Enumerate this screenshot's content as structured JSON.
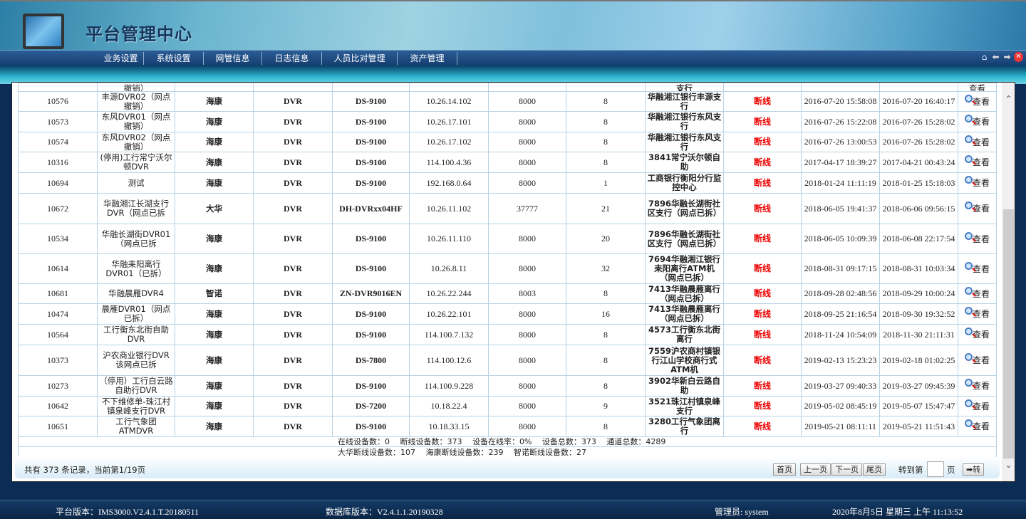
{
  "header": {
    "title": "平台管理中心"
  },
  "nav": {
    "items": [
      "业务设置",
      "系统设置",
      "网管信息",
      "日志信息",
      "人员比对管理",
      "资产管理"
    ],
    "icons": [
      "home-icon",
      "back-arrow-icon",
      "forward-arrow-icon",
      "close-icon"
    ]
  },
  "table": {
    "partial_row": {
      "name": "撤销）",
      "org": "支行",
      "action": "查看"
    },
    "rows": [
      [
        "10576",
        "丰源DVR02（网点撤销）",
        "海康",
        "DVR",
        "DS-9100",
        "10.26.14.102",
        "8000",
        "8",
        "华融湘江银行丰源支行",
        "断线",
        "2016-07-20 15:58:08",
        "2016-07-20 16:40:17",
        "查看"
      ],
      [
        "10573",
        "东风DVR01（网点撤销）",
        "海康",
        "DVR",
        "DS-9100",
        "10.26.17.101",
        "8000",
        "8",
        "华融湘江银行东风支行",
        "断线",
        "2016-07-26 15:22:08",
        "2016-07-26 15:28:02",
        "查看"
      ],
      [
        "10574",
        "东风DVR02（网点撤销）",
        "海康",
        "DVR",
        "DS-9100",
        "10.26.17.102",
        "8000",
        "8",
        "华融湘江银行东风支行",
        "断线",
        "2016-07-26 13:00:53",
        "2016-07-26 15:28:02",
        "查看"
      ],
      [
        "10316",
        "(停用)工行常宁沃尔顿DVR",
        "海康",
        "DVR",
        "DS-9100",
        "114.100.4.36",
        "8000",
        "8",
        "3841常宁沃尔顿自助",
        "断线",
        "2017-04-17 18:39:27",
        "2017-04-21 00:43:24",
        "查看"
      ],
      [
        "10694",
        "测试",
        "海康",
        "DVR",
        "DS-9100",
        "192.168.0.64",
        "8000",
        "1",
        "工商银行衡阳分行监控中心",
        "断线",
        "2018-01-24 11:11:19",
        "2018-01-25 15:18:03",
        "查看"
      ],
      [
        "10672",
        "华融湘江长湖支行DVR（网点已拆",
        "大华",
        "DVR",
        "DH-DVRxx04HF",
        "10.26.11.102",
        "37777",
        "21",
        "7896华融长湖街社区支行（网点已拆）",
        "断线",
        "2018-06-05 19:41:37",
        "2018-06-06 09:56:15",
        "查看"
      ],
      [
        "10534",
        "华融长湖街DVR01（网点已拆",
        "海康",
        "DVR",
        "DS-9100",
        "10.26.11.110",
        "8000",
        "20",
        "7896华融长湖街社区支行（网点已拆）",
        "断线",
        "2018-06-05 10:09:39",
        "2018-06-08 22:17:54",
        "查看"
      ],
      [
        "10614",
        "华融耒阳离行DVR01（已拆）",
        "海康",
        "DVR",
        "DS-9100",
        "10.26.8.11",
        "8000",
        "32",
        "7694华融湘江银行耒阳离行ATM机（网点已拆）",
        "断线",
        "2018-08-31 09:17:15",
        "2018-08-31 10:03:34",
        "查看"
      ],
      [
        "10681",
        "华融晨雁DVR4",
        "智诺",
        "DVR",
        "ZN-DVR9016EN",
        "10.26.22.244",
        "8003",
        "8",
        "7413华融晨雁离行（网点已拆）",
        "断线",
        "2018-09-28 02:48:56",
        "2018-09-29 10:00:24",
        "查看"
      ],
      [
        "10474",
        "晨雁DVR01（网点已拆）",
        "海康",
        "DVR",
        "DS-9100",
        "10.26.22.101",
        "8000",
        "16",
        "7413华融晨雁离行（网点已拆）",
        "断线",
        "2018-09-25 21:16:54",
        "2018-09-30 19:32:52",
        "查看"
      ],
      [
        "10564",
        "工行衡东北街自助DVR",
        "海康",
        "DVR",
        "DS-9100",
        "114.100.7.132",
        "8000",
        "8",
        "4573工行衡东北街离行",
        "断线",
        "2018-11-24 10:54:09",
        "2018-11-30 21:11:31",
        "查看"
      ],
      [
        "10373",
        "沪农商业银行DVR该网点已拆",
        "海康",
        "DVR",
        "DS-7800",
        "114.100.12.6",
        "8000",
        "8",
        "7559沪农商村镇银行江山学校商行式ATM机",
        "断线",
        "2019-02-13 15:23:23",
        "2019-02-18 01:02:25",
        "查看"
      ],
      [
        "10273",
        "（停用）工行白云路自助行DVR",
        "海康",
        "DVR",
        "DS-9100",
        "114.100.9.228",
        "8000",
        "8",
        "3902华新白云路自助",
        "断线",
        "2019-03-27 09:40:33",
        "2019-03-27 09:45:39",
        "查看"
      ],
      [
        "10642",
        "不下维修单-珠江村镇泉峰支行DVR",
        "海康",
        "DVR",
        "DS-7200",
        "10.18.22.4",
        "8000",
        "9",
        "3521珠江村镇泉峰支行",
        "断线",
        "2019-05-02 08:45:19",
        "2019-05-07 15:47:47",
        "查看"
      ],
      [
        "10651",
        "工行气象团ATMDVR",
        "海康",
        "DVR",
        "DS-9100",
        "10.18.33.15",
        "8000",
        "8",
        "3280工行气象团离行",
        "断线",
        "2019-05-21 08:11:11",
        "2019-05-21 11:51:43",
        "查看"
      ]
    ],
    "summary1": "在线设备数：0　 断线设备数：373　 设备在线率：0%　 设备总数：373　 通道总数：4289",
    "summary2": "大华断线设备数：107　 海康断线设备数：239　 智诺断线设备数：27"
  },
  "pager": {
    "records": "共有 373 条记录，当前第1/19页",
    "first": "首页",
    "prev": "上一页",
    "next": "下一页",
    "last": "尾页",
    "goto_label": "转到第",
    "goto_value": "",
    "page_label": "页",
    "go": "➡转"
  },
  "footer": {
    "platform": "平台版本：IMS3000.V2.4.1.T.20180511",
    "db": "数据库版本：V2.4.1.1.20190328",
    "admin": "管理员: system",
    "datetime": "2020年8月5日 星期三 上午 11:13:52"
  },
  "colors": {
    "offline": "#e00000",
    "nav": "#1f4c82"
  }
}
